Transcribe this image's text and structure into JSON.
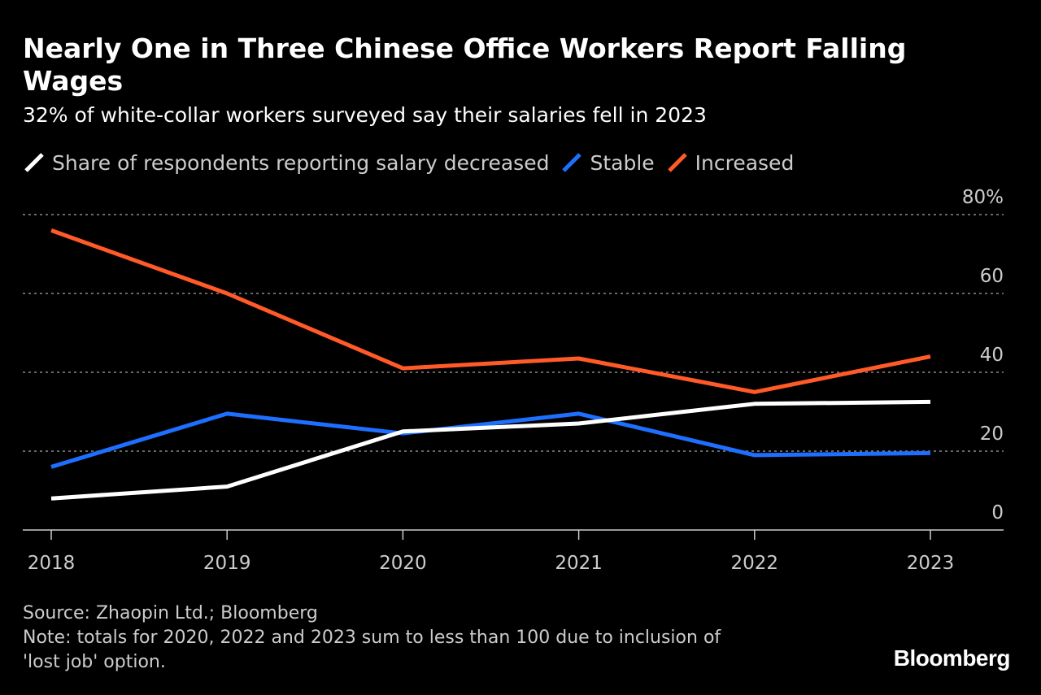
{
  "header": {
    "title": "Nearly One in Three Chinese Office Workers Report Falling Wages",
    "subtitle": "32% of white-collar workers surveyed say their salaries fell in 2023"
  },
  "legend": {
    "items": [
      {
        "label": "Share of respondents reporting salary decreased",
        "color": "#ffffff"
      },
      {
        "label": "Stable",
        "color": "#1f6fff"
      },
      {
        "label": "Increased",
        "color": "#ff5a28"
      }
    ]
  },
  "chart_data": {
    "type": "line",
    "title": "Nearly One in Three Chinese Office Workers Report Falling Wages",
    "subtitle": "32% of white-collar workers surveyed say their salaries fell in 2023",
    "categories": [
      "2018",
      "2019",
      "2020",
      "2021",
      "2022",
      "2023"
    ],
    "series": [
      {
        "name": "Share of respondents reporting salary decreased",
        "color": "#ffffff",
        "values": [
          8,
          11,
          25,
          27,
          32,
          32.5
        ]
      },
      {
        "name": "Stable",
        "color": "#1f6fff",
        "values": [
          16,
          29.5,
          24.5,
          29.5,
          19,
          19.5
        ]
      },
      {
        "name": "Increased",
        "color": "#ff5a28",
        "values": [
          76,
          60,
          41,
          43.5,
          35,
          44
        ]
      }
    ],
    "yticks": [
      {
        "value": 0,
        "label": "0"
      },
      {
        "value": 20,
        "label": "20"
      },
      {
        "value": 40,
        "label": "40"
      },
      {
        "value": 60,
        "label": "60"
      },
      {
        "value": 80,
        "label": "80%"
      }
    ],
    "ylim": [
      0,
      80
    ],
    "xlabel": "",
    "ylabel": "",
    "grid": true,
    "legend_position": "top-left"
  },
  "footer": {
    "source": "Source: Zhaopin Ltd.; Bloomberg",
    "note_line1": "Note: totals for 2020, 2022 and 2023 sum to less than 100 due to inclusion of",
    "note_line2": "'lost job' option.",
    "brand": "Bloomberg"
  }
}
